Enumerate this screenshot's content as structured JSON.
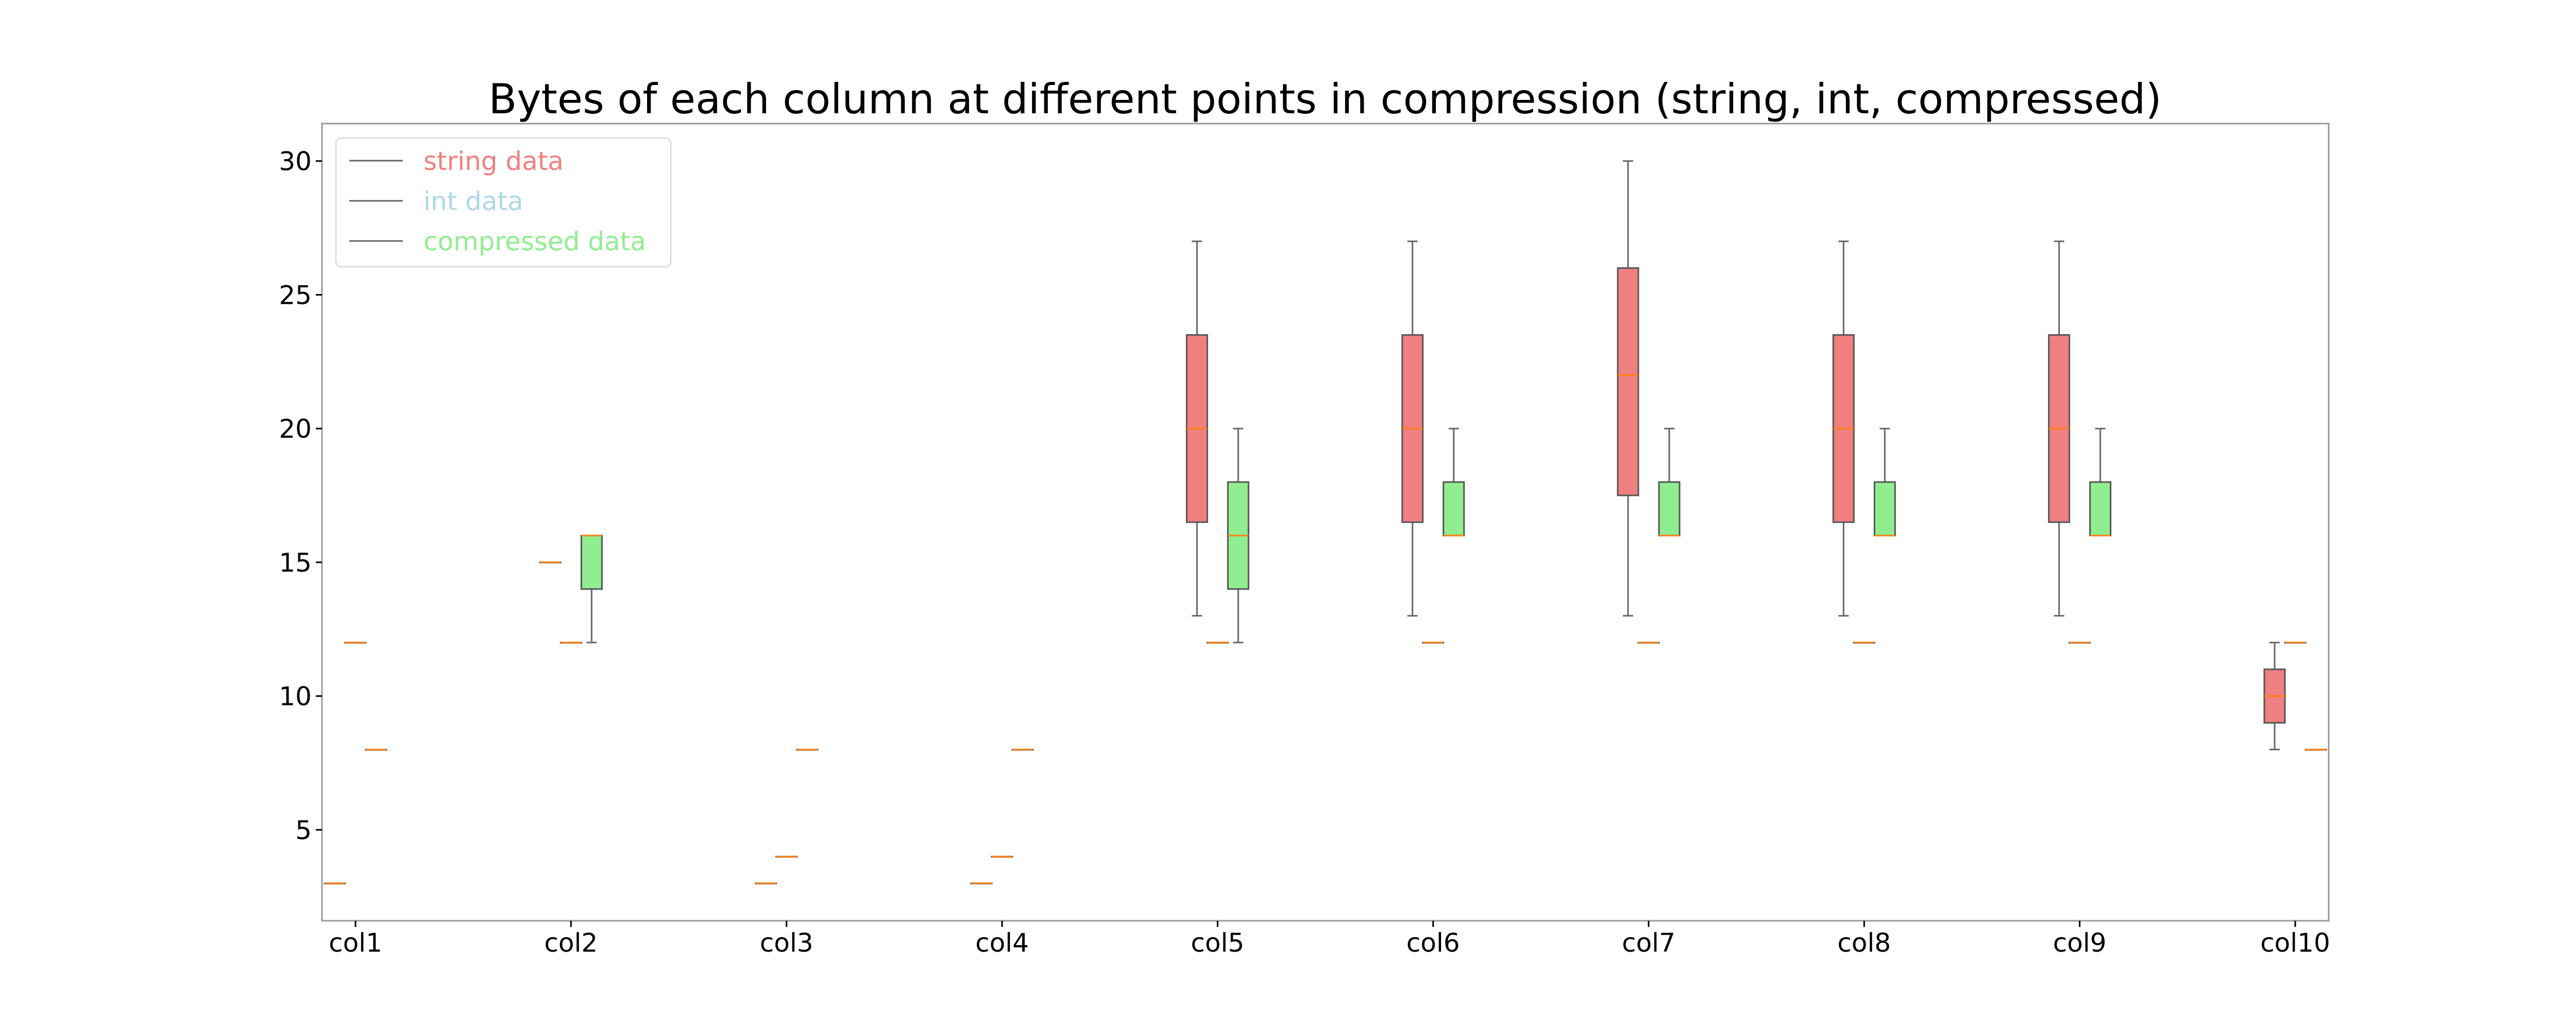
{
  "chart_data": {
    "type": "box",
    "title": "Bytes of each column at different points in compression (string, int, compressed)",
    "xlabel": "",
    "ylabel": "",
    "categories": [
      "col1",
      "col2",
      "col3",
      "col4",
      "col5",
      "col6",
      "col7",
      "col8",
      "col9",
      "col10"
    ],
    "ylim": [
      1.6,
      31.4
    ],
    "yticks": [
      5,
      10,
      15,
      20,
      25,
      30
    ],
    "grid": false,
    "legend": {
      "placement": "upper-left"
    },
    "series": [
      {
        "name": "string data",
        "color": "#f08080",
        "boxes": [
          {
            "whislo": 3,
            "q1": 3,
            "med": 3,
            "q3": 3,
            "whishi": 3
          },
          {
            "whislo": 15,
            "q1": 15,
            "med": 15,
            "q3": 15,
            "whishi": 15
          },
          {
            "whislo": 3,
            "q1": 3,
            "med": 3,
            "q3": 3,
            "whishi": 3
          },
          {
            "whislo": 3,
            "q1": 3,
            "med": 3,
            "q3": 3,
            "whishi": 3
          },
          {
            "whislo": 13,
            "q1": 16.5,
            "med": 20,
            "q3": 23.5,
            "whishi": 27
          },
          {
            "whislo": 13,
            "q1": 16.5,
            "med": 20,
            "q3": 23.5,
            "whishi": 27
          },
          {
            "whislo": 13,
            "q1": 17.5,
            "med": 22,
            "q3": 26,
            "whishi": 30
          },
          {
            "whislo": 13,
            "q1": 16.5,
            "med": 20,
            "q3": 23.5,
            "whishi": 27
          },
          {
            "whislo": 13,
            "q1": 16.5,
            "med": 20,
            "q3": 23.5,
            "whishi": 27
          },
          {
            "whislo": 8,
            "q1": 9,
            "med": 10,
            "q3": 11,
            "whishi": 12
          }
        ]
      },
      {
        "name": "int data",
        "color": "#add8e6",
        "boxes": [
          {
            "whislo": 12,
            "q1": 12,
            "med": 12,
            "q3": 12,
            "whishi": 12
          },
          {
            "whislo": 12,
            "q1": 12,
            "med": 12,
            "q3": 12,
            "whishi": 12
          },
          {
            "whislo": 4,
            "q1": 4,
            "med": 4,
            "q3": 4,
            "whishi": 4
          },
          {
            "whislo": 4,
            "q1": 4,
            "med": 4,
            "q3": 4,
            "whishi": 4
          },
          {
            "whislo": 12,
            "q1": 12,
            "med": 12,
            "q3": 12,
            "whishi": 12
          },
          {
            "whislo": 12,
            "q1": 12,
            "med": 12,
            "q3": 12,
            "whishi": 12
          },
          {
            "whislo": 12,
            "q1": 12,
            "med": 12,
            "q3": 12,
            "whishi": 12
          },
          {
            "whislo": 12,
            "q1": 12,
            "med": 12,
            "q3": 12,
            "whishi": 12
          },
          {
            "whislo": 12,
            "q1": 12,
            "med": 12,
            "q3": 12,
            "whishi": 12
          },
          {
            "whislo": 12,
            "q1": 12,
            "med": 12,
            "q3": 12,
            "whishi": 12
          }
        ]
      },
      {
        "name": "compressed data",
        "color": "#90ee90",
        "boxes": [
          {
            "whislo": 8,
            "q1": 8,
            "med": 8,
            "q3": 8,
            "whishi": 8
          },
          {
            "whislo": 12,
            "q1": 14,
            "med": 16,
            "q3": 16,
            "whishi": 16
          },
          {
            "whislo": 8,
            "q1": 8,
            "med": 8,
            "q3": 8,
            "whishi": 8
          },
          {
            "whislo": 8,
            "q1": 8,
            "med": 8,
            "q3": 8,
            "whishi": 8
          },
          {
            "whislo": 12,
            "q1": 14,
            "med": 16,
            "q3": 18,
            "whishi": 20
          },
          {
            "whislo": 16,
            "q1": 16,
            "med": 16,
            "q3": 18,
            "whishi": 20
          },
          {
            "whislo": 16,
            "q1": 16,
            "med": 16,
            "q3": 18,
            "whishi": 20
          },
          {
            "whislo": 16,
            "q1": 16,
            "med": 16,
            "q3": 18,
            "whishi": 20
          },
          {
            "whislo": 16,
            "q1": 16,
            "med": 16,
            "q3": 18,
            "whishi": 20
          },
          {
            "whislo": 8,
            "q1": 8,
            "med": 8,
            "q3": 8,
            "whishi": 8
          }
        ]
      }
    ]
  }
}
